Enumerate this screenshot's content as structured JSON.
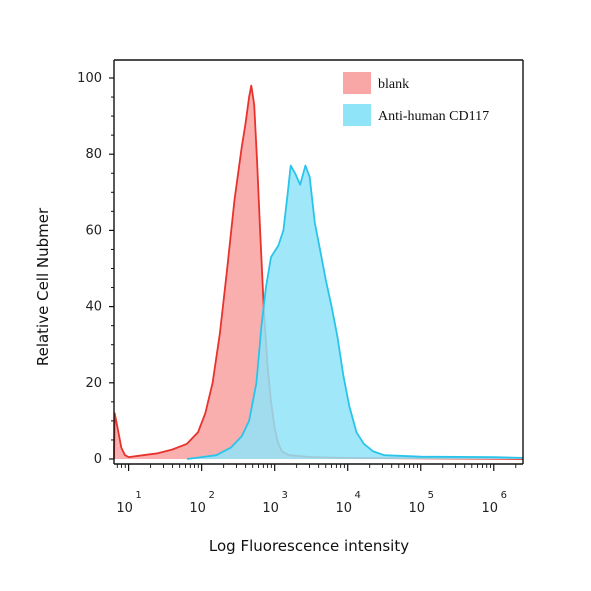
{
  "chart_data": {
    "type": "area",
    "title": "",
    "xlabel": "Log Fluorescence intensity",
    "ylabel": "Relative Cell Nubmer",
    "x_scale": "log",
    "xlim_exponent": [
      0.8,
      6.4
    ],
    "ylim": [
      0,
      100
    ],
    "y_ticks": [
      "0",
      "20",
      "40",
      "60",
      "80",
      "100"
    ],
    "x_ticks": [
      {
        "base": "10",
        "exp": "1",
        "value_exp": 1
      },
      {
        "base": "10",
        "exp": "2",
        "value_exp": 2
      },
      {
        "base": "10",
        "exp": "3",
        "value_exp": 3
      },
      {
        "base": "10",
        "exp": "4",
        "value_exp": 4
      },
      {
        "base": "10",
        "exp": "5",
        "value_exp": 5
      },
      {
        "base": "10",
        "exp": "6",
        "value_exp": 6
      }
    ],
    "grid": false,
    "legend_position": "top-right",
    "series": [
      {
        "name": "blank",
        "fill": "#f9a6a6",
        "stroke": "#e8322c",
        "points": [
          [
            0.8,
            0
          ],
          [
            0.81,
            12
          ],
          [
            0.85,
            8
          ],
          [
            0.9,
            3
          ],
          [
            0.95,
            1
          ],
          [
            1.0,
            0.5
          ],
          [
            1.2,
            1
          ],
          [
            1.4,
            1.5
          ],
          [
            1.6,
            2.5
          ],
          [
            1.8,
            4
          ],
          [
            1.95,
            7
          ],
          [
            2.05,
            12
          ],
          [
            2.15,
            20
          ],
          [
            2.25,
            33
          ],
          [
            2.35,
            50
          ],
          [
            2.45,
            68
          ],
          [
            2.55,
            82
          ],
          [
            2.6,
            88
          ],
          [
            2.65,
            95
          ],
          [
            2.68,
            98
          ],
          [
            2.72,
            93
          ],
          [
            2.76,
            78
          ],
          [
            2.8,
            60
          ],
          [
            2.85,
            40
          ],
          [
            2.9,
            25
          ],
          [
            2.95,
            15
          ],
          [
            3.0,
            8
          ],
          [
            3.05,
            4
          ],
          [
            3.1,
            2
          ],
          [
            3.2,
            1
          ],
          [
            3.5,
            0.5
          ],
          [
            4.0,
            0.3
          ],
          [
            6.4,
            0
          ]
        ]
      },
      {
        "name": "Anti-human CD117",
        "fill": "#8fe4f8",
        "stroke": "#29c4ea",
        "points": [
          [
            1.8,
            0
          ],
          [
            2.0,
            0.5
          ],
          [
            2.2,
            1
          ],
          [
            2.4,
            3
          ],
          [
            2.55,
            6
          ],
          [
            2.65,
            10
          ],
          [
            2.75,
            20
          ],
          [
            2.82,
            35
          ],
          [
            2.88,
            45
          ],
          [
            2.95,
            53
          ],
          [
            3.05,
            56
          ],
          [
            3.12,
            60
          ],
          [
            3.18,
            70
          ],
          [
            3.22,
            77
          ],
          [
            3.28,
            75
          ],
          [
            3.35,
            72
          ],
          [
            3.42,
            77
          ],
          [
            3.48,
            74
          ],
          [
            3.55,
            62
          ],
          [
            3.62,
            55
          ],
          [
            3.7,
            47
          ],
          [
            3.78,
            40
          ],
          [
            3.86,
            32
          ],
          [
            3.94,
            22
          ],
          [
            4.02,
            14
          ],
          [
            4.12,
            7
          ],
          [
            4.22,
            4
          ],
          [
            4.35,
            2
          ],
          [
            4.5,
            1
          ],
          [
            5.0,
            0.6
          ],
          [
            6.0,
            0.5
          ],
          [
            6.4,
            0.3
          ]
        ]
      }
    ]
  }
}
